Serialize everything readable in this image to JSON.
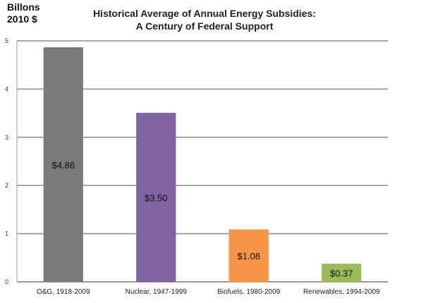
{
  "chart_data": {
    "type": "bar",
    "title": "Historical Average of Annual Energy Subsidies:",
    "subtitle": "A Century of Federal Support",
    "ylabel_line1": "Billons",
    "ylabel_line2": "2010 $",
    "categories": [
      "O&G, 1918-2009",
      "Nuclear, 1947-1999",
      "Biofuels, 1980-2009",
      "Renewables, 1994-2009"
    ],
    "values": [
      4.86,
      3.5,
      1.08,
      0.37
    ],
    "data_labels": [
      "$4.86",
      "$3.50",
      "$1.08",
      "$0.37"
    ],
    "bar_colors": [
      "#7a7a7a",
      "#8064a2",
      "#f79646",
      "#9bbb59"
    ],
    "ylim": [
      0,
      5
    ],
    "yticks": [
      "0",
      "1",
      "2",
      "3",
      "4",
      "5"
    ],
    "gridlines": true,
    "grid_color": "#8c8c8c",
    "legend": "none"
  }
}
